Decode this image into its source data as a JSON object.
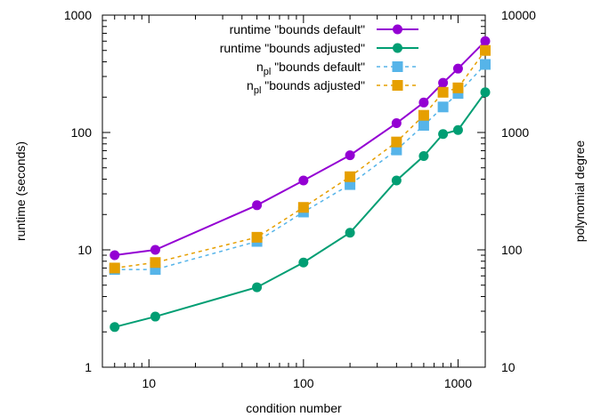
{
  "chart_data": {
    "type": "line",
    "title": "",
    "xlabel": "condition number",
    "ylabel": "runtime (seconds)",
    "y2label": "polynomial degree",
    "x_scale": "log",
    "y_scale": "log",
    "y2_scale": "log",
    "xlim": [
      5,
      1500
    ],
    "ylim": [
      1,
      1000
    ],
    "y2lim": [
      10,
      10000
    ],
    "xticks": [
      "10",
      "100",
      "1000"
    ],
    "yticks": [
      "1",
      "10",
      "100",
      "1000"
    ],
    "y2ticks": [
      "10",
      "100",
      "1000",
      "10000"
    ],
    "x": [
      6,
      11,
      50,
      100,
      200,
      400,
      600,
      800,
      1000,
      1500
    ],
    "legend_position": "top-right",
    "grid": false,
    "series": [
      {
        "name": "runtime \"bounds default\"",
        "axis": "y",
        "style": "solid",
        "marker": "circle",
        "color": "#9400D3",
        "values": [
          9,
          10,
          24,
          39,
          64,
          120,
          180,
          265,
          350,
          600
        ]
      },
      {
        "name": "runtime \"bounds adjusted\"",
        "axis": "y",
        "style": "solid",
        "marker": "circle",
        "color": "#009E73",
        "values": [
          2.2,
          2.7,
          4.8,
          7.8,
          14,
          39,
          63,
          97,
          105,
          220
        ]
      },
      {
        "name_prefix": "n",
        "name_sub": "pl",
        "name": " \"bounds default\"",
        "axis": "y2",
        "style": "dashed",
        "marker": "square",
        "color": "#56B4E9",
        "values": [
          68,
          68,
          118,
          210,
          360,
          710,
          1150,
          1650,
          2150,
          3800
        ]
      },
      {
        "name_prefix": "n",
        "name_sub": "pl",
        "name": " \"bounds adjusted\"",
        "axis": "y2",
        "style": "dashed",
        "marker": "square",
        "color": "#E69F00",
        "values": [
          70,
          78,
          128,
          230,
          420,
          830,
          1400,
          2200,
          2400,
          5000
        ]
      }
    ]
  }
}
